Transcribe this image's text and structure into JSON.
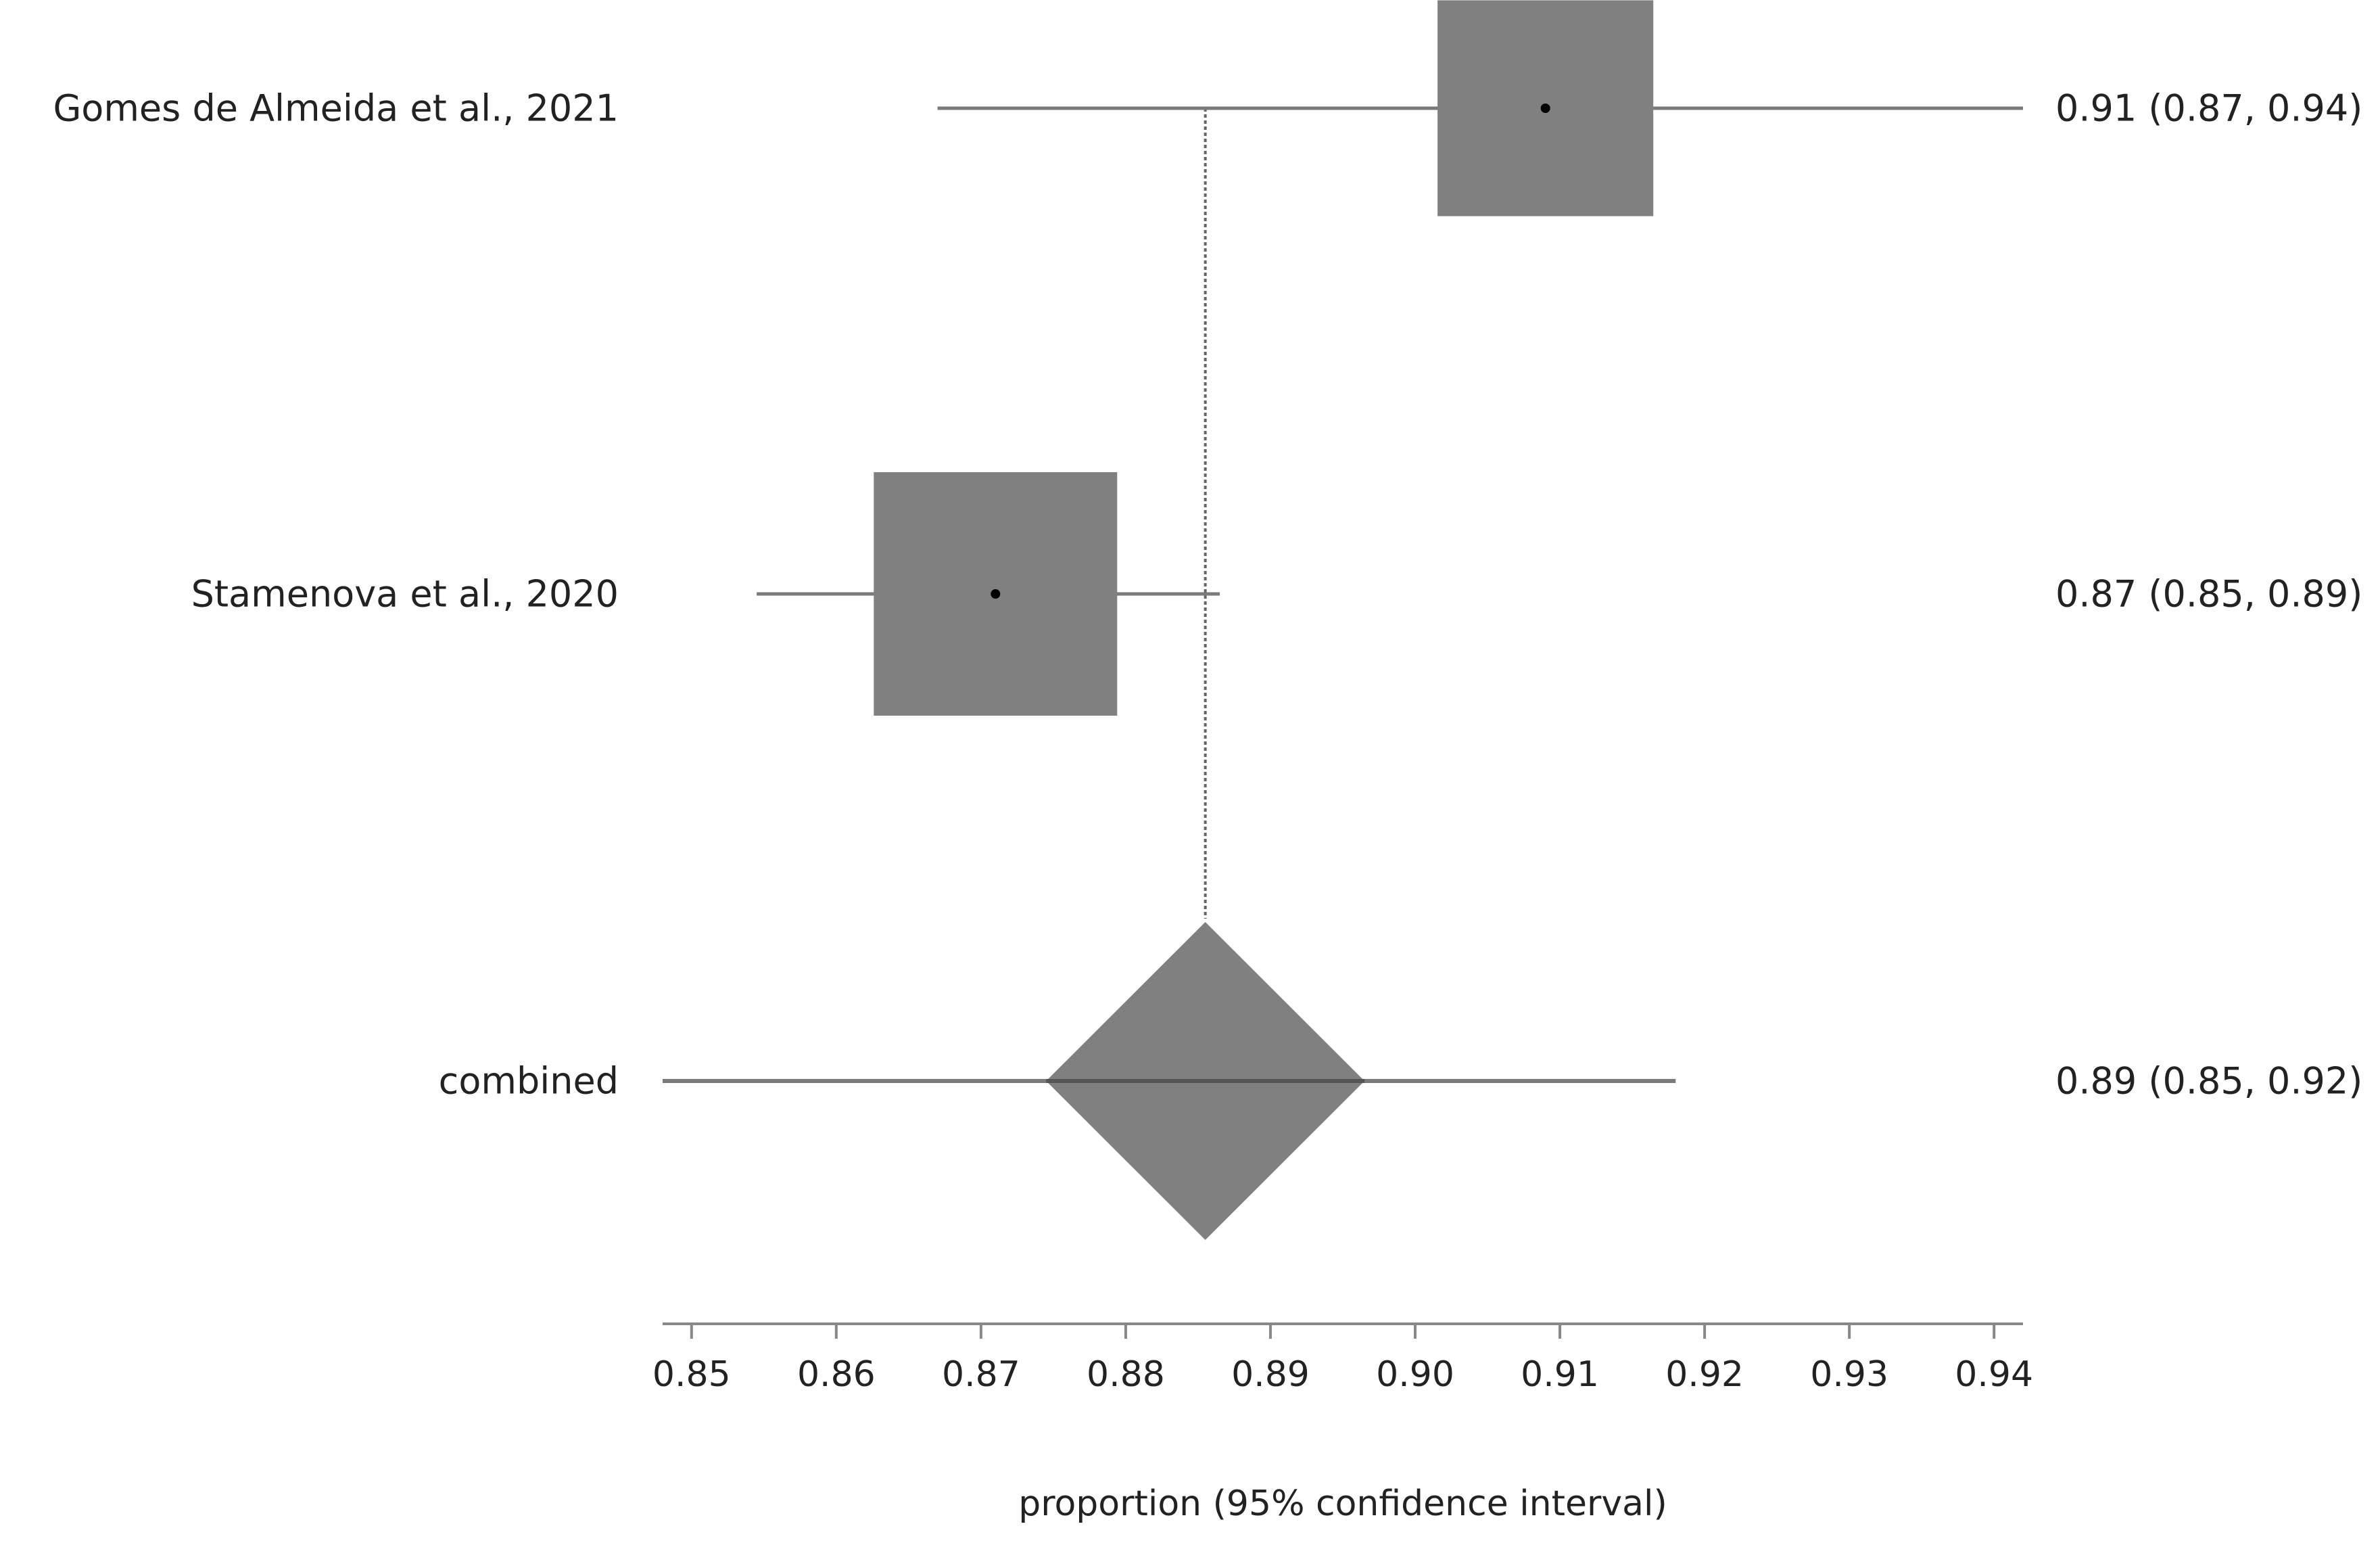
{
  "chart_data": {
    "type": "forest",
    "xlabel": "proportion (95% confidence interval)",
    "xlim": [
      0.848,
      0.942
    ],
    "xticks": [
      0.85,
      0.86,
      0.87,
      0.88,
      0.89,
      0.9,
      0.91,
      0.92,
      0.93,
      0.94
    ],
    "xtick_labels": [
      "0.85",
      "0.86",
      "0.87",
      "0.88",
      "0.89",
      "0.90",
      "0.91",
      "0.92",
      "0.93",
      "0.94"
    ],
    "pooled_estimate": 0.8855,
    "studies": [
      {
        "label": "Gomes de Almeida et al., 2021",
        "estimate": 0.909,
        "display_lower": 0.867,
        "display_upper": 0.942,
        "ci_text": "0.91 (0.87, 0.94)",
        "weight": 0.44
      },
      {
        "label": "Stamenova et al., 2020",
        "estimate": 0.871,
        "display_lower": 0.8545,
        "display_upper": 0.8865,
        "ci_text": "0.87 (0.85, 0.89)",
        "weight": 0.56
      }
    ],
    "combined": {
      "label": "combined",
      "estimate": 0.8855,
      "lower": 0.8745,
      "upper": 0.8965,
      "display_lower": 0.848,
      "display_upper": 0.918,
      "ci_text": "0.89 (0.85, 0.92)"
    },
    "colors": {
      "box": "#808080",
      "line": "#7a7a7a",
      "marker": "#000000",
      "axis": "#888888"
    }
  }
}
